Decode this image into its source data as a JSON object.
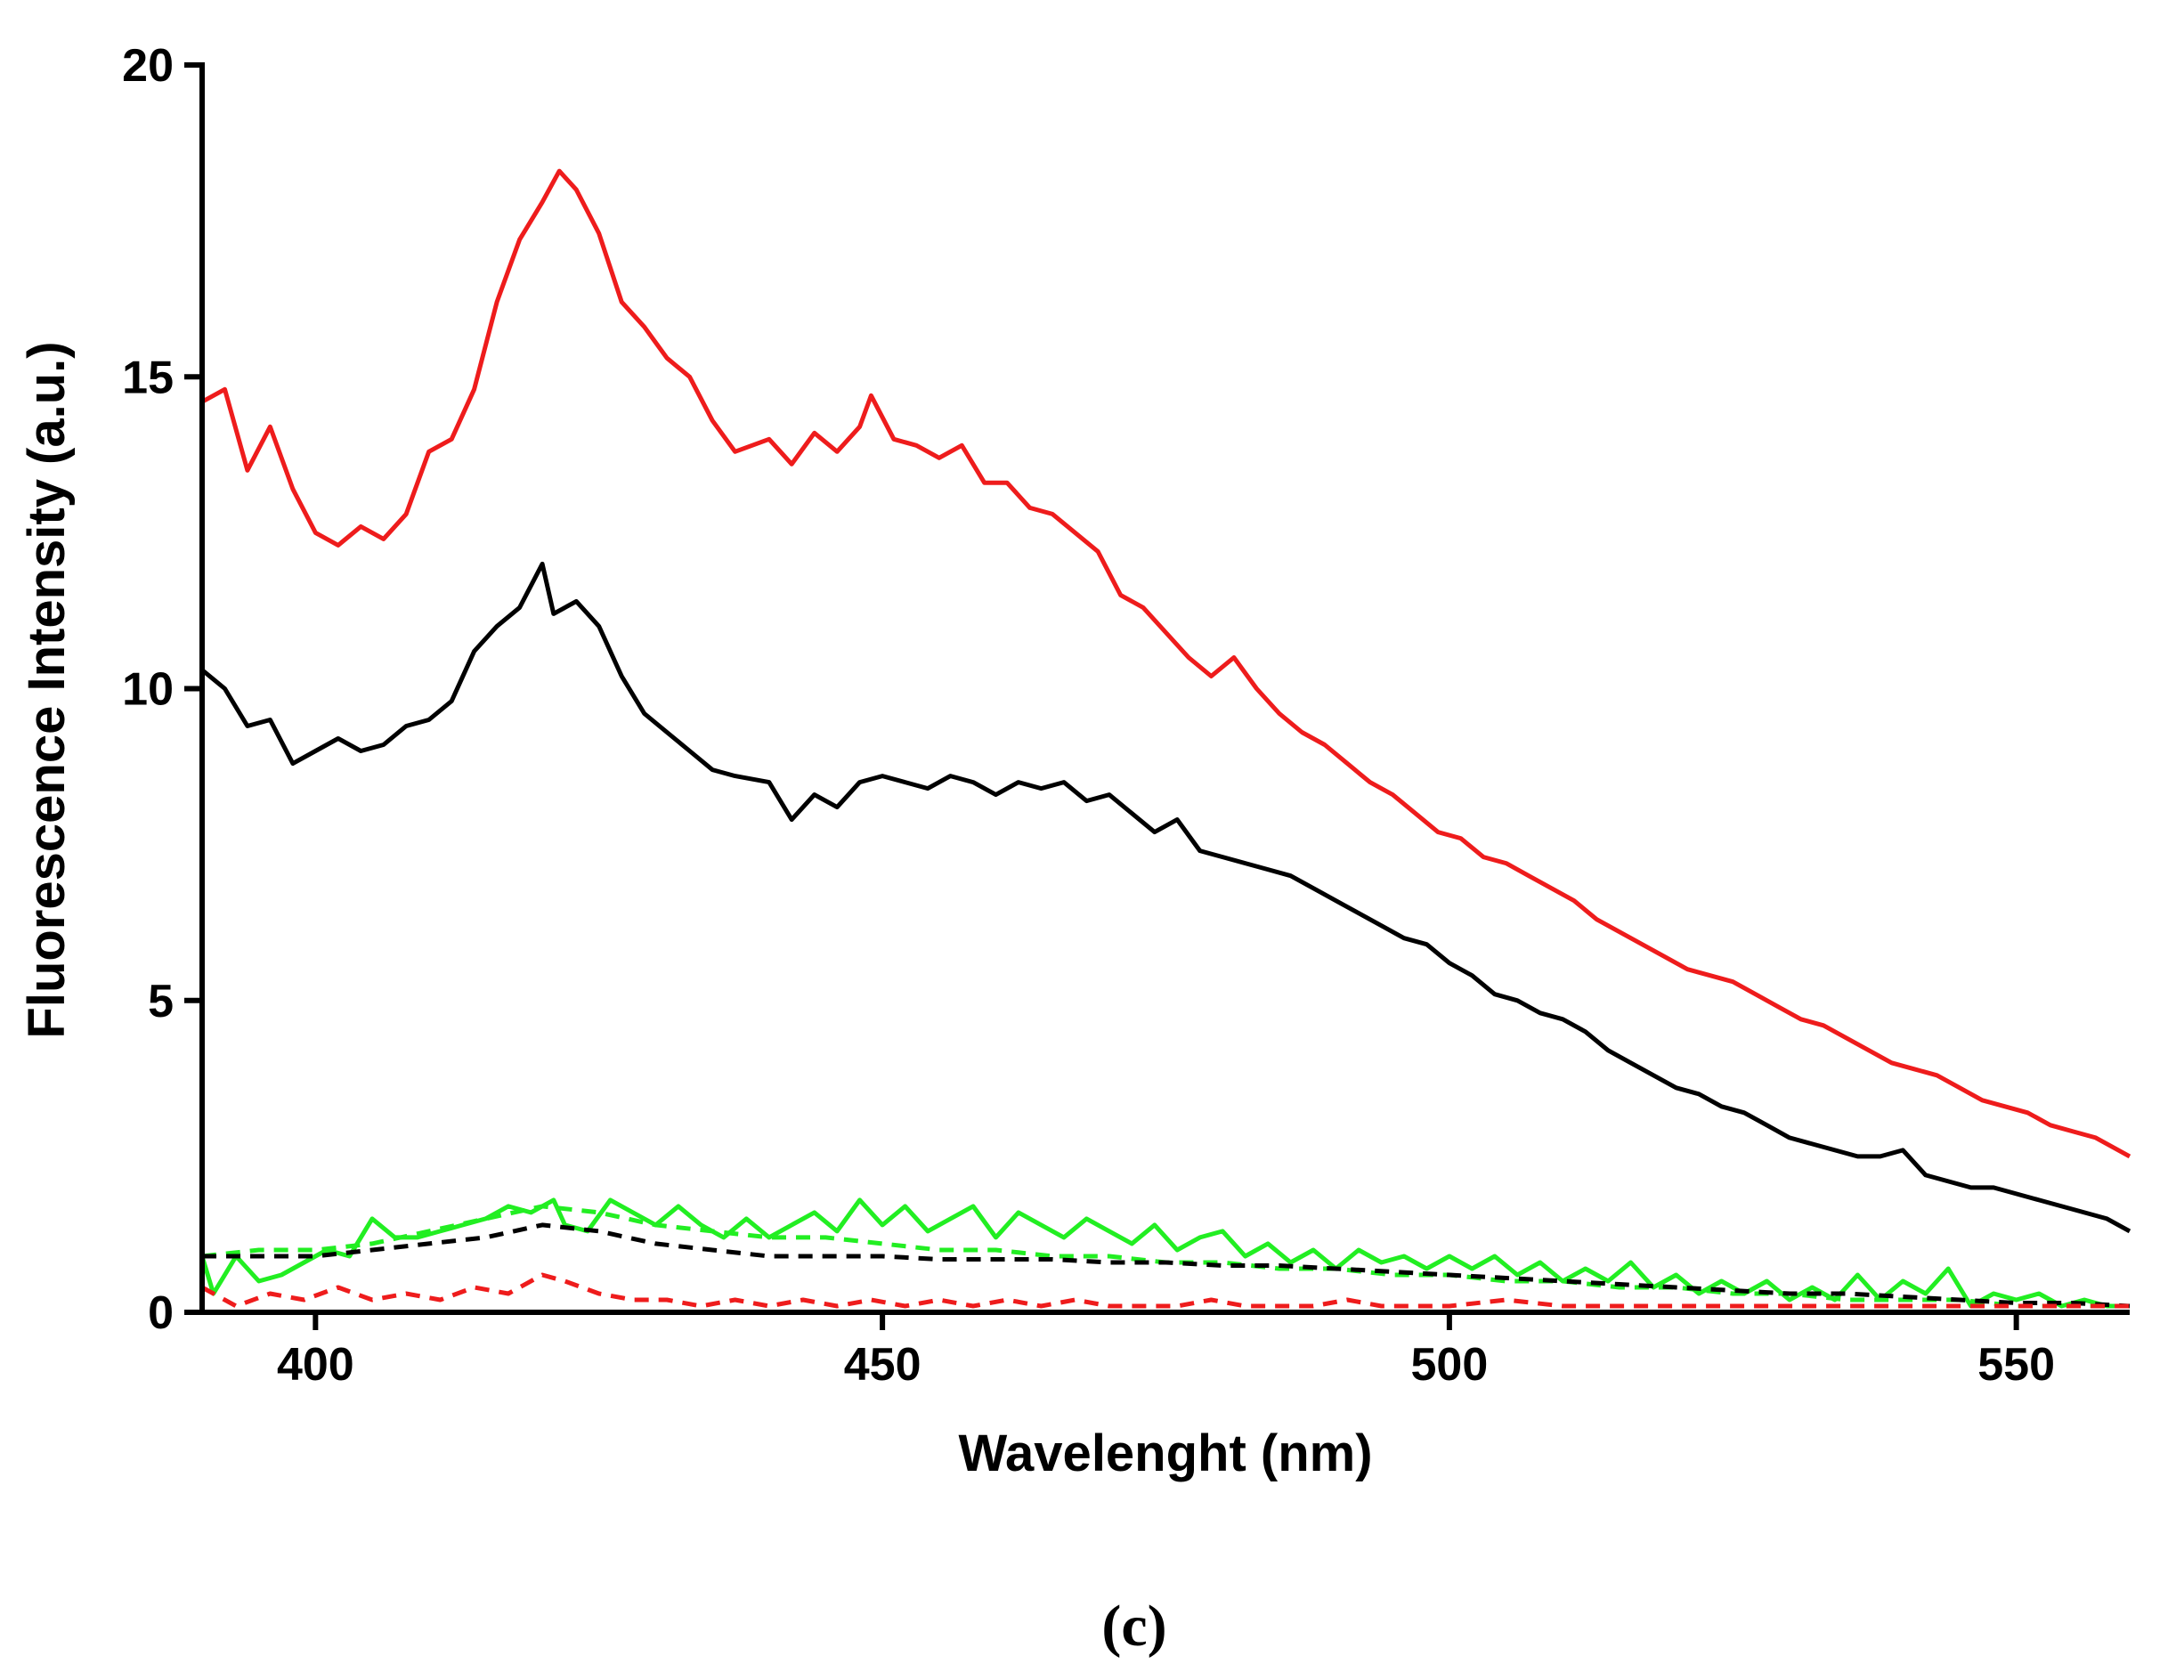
{
  "panel_label": "(c)",
  "chart_data": {
    "type": "line",
    "title": "",
    "xlabel": "Wavelenght (nm)",
    "ylabel": "Fluorescence Intensity (a.u.)",
    "xlim": [
      390,
      560
    ],
    "ylim": [
      0,
      20
    ],
    "xticks": [
      400,
      450,
      500,
      550
    ],
    "yticks": [
      0,
      5,
      10,
      15,
      20
    ],
    "grid": false,
    "legend": "none",
    "series": [
      {
        "color": "#ee1c1c",
        "style": "solid",
        "x": [
          390,
          392,
          394,
          396,
          398,
          400,
          402,
          404,
          406,
          408,
          410,
          412,
          414,
          416,
          418,
          420,
          421.5,
          423,
          425,
          427,
          429,
          431,
          433,
          435,
          437,
          440,
          442,
          444,
          446,
          448,
          449,
          451,
          453,
          455,
          457,
          459,
          461,
          463,
          465,
          467,
          469,
          471,
          473,
          475,
          477,
          479,
          481,
          483,
          485,
          487,
          489,
          491,
          493,
          495,
          497,
          499,
          501,
          503,
          505,
          507,
          509,
          511,
          513,
          515,
          517,
          519,
          521,
          523,
          525,
          527,
          529,
          531,
          533,
          535,
          537,
          539,
          541,
          543,
          545,
          547,
          549,
          551,
          553,
          555,
          557,
          559,
          560
        ],
        "values": [
          14.6,
          14.8,
          13.5,
          14.2,
          13.2,
          12.5,
          12.3,
          12.6,
          12.4,
          12.8,
          13.8,
          14.0,
          14.8,
          16.2,
          17.2,
          17.8,
          18.3,
          18.0,
          17.3,
          16.2,
          15.8,
          15.3,
          15.0,
          14.3,
          13.8,
          14.0,
          13.6,
          14.1,
          13.8,
          14.2,
          14.7,
          14.0,
          13.9,
          13.7,
          13.9,
          13.3,
          13.3,
          12.9,
          12.8,
          12.5,
          12.2,
          11.5,
          11.3,
          10.9,
          10.5,
          10.2,
          10.5,
          10.0,
          9.6,
          9.3,
          9.1,
          8.8,
          8.5,
          8.3,
          8.0,
          7.7,
          7.6,
          7.3,
          7.2,
          7.0,
          6.8,
          6.6,
          6.3,
          6.1,
          5.9,
          5.7,
          5.5,
          5.4,
          5.3,
          5.1,
          4.9,
          4.7,
          4.6,
          4.4,
          4.2,
          4.0,
          3.9,
          3.8,
          3.6,
          3.4,
          3.3,
          3.2,
          3.0,
          2.9,
          2.8,
          2.6,
          2.5
        ]
      },
      {
        "color": "#000000",
        "style": "solid",
        "x": [
          390,
          392,
          394,
          396,
          398,
          400,
          402,
          404,
          406,
          408,
          410,
          412,
          414,
          416,
          418,
          420,
          421,
          423,
          425,
          427,
          429,
          431,
          433,
          435,
          437,
          440,
          442,
          444,
          446,
          448,
          450,
          452,
          454,
          456,
          458,
          460,
          462,
          464,
          466,
          468,
          470,
          472,
          474,
          476,
          478,
          480,
          482,
          484,
          486,
          488,
          490,
          492,
          494,
          496,
          498,
          500,
          502,
          504,
          506,
          508,
          510,
          512,
          514,
          516,
          518,
          520,
          522,
          524,
          526,
          528,
          530,
          532,
          534,
          536,
          538,
          540,
          542,
          544,
          546,
          548,
          550,
          552,
          554,
          556,
          558,
          560
        ],
        "values": [
          10.3,
          10.0,
          9.4,
          9.5,
          8.8,
          9.0,
          9.2,
          9.0,
          9.1,
          9.4,
          9.5,
          9.8,
          10.6,
          11.0,
          11.3,
          12.0,
          11.2,
          11.4,
          11.0,
          10.2,
          9.6,
          9.3,
          9.0,
          8.7,
          8.6,
          8.5,
          7.9,
          8.3,
          8.1,
          8.5,
          8.6,
          8.5,
          8.4,
          8.6,
          8.5,
          8.3,
          8.5,
          8.4,
          8.5,
          8.2,
          8.3,
          8.0,
          7.7,
          7.9,
          7.4,
          7.3,
          7.2,
          7.1,
          7.0,
          6.8,
          6.6,
          6.4,
          6.2,
          6.0,
          5.9,
          5.6,
          5.4,
          5.1,
          5.0,
          4.8,
          4.7,
          4.5,
          4.2,
          4.0,
          3.8,
          3.6,
          3.5,
          3.3,
          3.2,
          3.0,
          2.8,
          2.7,
          2.6,
          2.5,
          2.5,
          2.6,
          2.2,
          2.1,
          2.0,
          2.0,
          1.9,
          1.8,
          1.7,
          1.6,
          1.5,
          1.3
        ]
      },
      {
        "color": "#22ee22",
        "style": "solid",
        "x": [
          390,
          391,
          393,
          395,
          397,
          399,
          401,
          403,
          405,
          407,
          409,
          411,
          413,
          415,
          417,
          419,
          421,
          422,
          424,
          426,
          428,
          430,
          432,
          434,
          436,
          438,
          440,
          442,
          444,
          446,
          448,
          450,
          452,
          454,
          456,
          458,
          460,
          462,
          464,
          466,
          468,
          470,
          472,
          474,
          476,
          478,
          480,
          482,
          484,
          486,
          488,
          490,
          492,
          494,
          496,
          498,
          500,
          502,
          504,
          506,
          508,
          510,
          512,
          514,
          516,
          518,
          520,
          522,
          524,
          526,
          528,
          530,
          532,
          534,
          536,
          538,
          540,
          542,
          544,
          546,
          548,
          550,
          552,
          554,
          556,
          558,
          560
        ],
        "values": [
          0.9,
          0.3,
          0.9,
          0.5,
          0.6,
          0.8,
          1.0,
          0.9,
          1.5,
          1.2,
          1.2,
          1.3,
          1.4,
          1.5,
          1.7,
          1.6,
          1.8,
          1.4,
          1.3,
          1.8,
          1.6,
          1.4,
          1.7,
          1.4,
          1.2,
          1.5,
          1.2,
          1.4,
          1.6,
          1.3,
          1.8,
          1.4,
          1.7,
          1.3,
          1.5,
          1.7,
          1.2,
          1.6,
          1.4,
          1.2,
          1.5,
          1.3,
          1.1,
          1.4,
          1.0,
          1.2,
          1.3,
          0.9,
          1.1,
          0.8,
          1.0,
          0.7,
          1.0,
          0.8,
          0.9,
          0.7,
          0.9,
          0.7,
          0.9,
          0.6,
          0.8,
          0.5,
          0.7,
          0.5,
          0.8,
          0.4,
          0.6,
          0.3,
          0.5,
          0.3,
          0.5,
          0.2,
          0.4,
          0.2,
          0.6,
          0.2,
          0.5,
          0.3,
          0.7,
          0.1,
          0.3,
          0.2,
          0.3,
          0.1,
          0.2,
          0.1,
          0.1
        ]
      },
      {
        "color": "#22ee22",
        "style": "dashed",
        "x": [
          390,
          395,
          400,
          405,
          410,
          415,
          420,
          425,
          430,
          435,
          440,
          445,
          450,
          455,
          460,
          465,
          470,
          475,
          480,
          485,
          490,
          495,
          500,
          505,
          510,
          515,
          520,
          525,
          530,
          535,
          540,
          545,
          550,
          555,
          560
        ],
        "values": [
          0.9,
          1.0,
          1.0,
          1.1,
          1.3,
          1.5,
          1.7,
          1.6,
          1.4,
          1.3,
          1.2,
          1.2,
          1.1,
          1.0,
          1.0,
          0.9,
          0.9,
          0.8,
          0.8,
          0.7,
          0.7,
          0.6,
          0.6,
          0.5,
          0.5,
          0.4,
          0.4,
          0.3,
          0.3,
          0.2,
          0.2,
          0.2,
          0.1,
          0.1,
          0.1
        ]
      },
      {
        "color": "#000000",
        "style": "dashed",
        "x": [
          390,
          395,
          400,
          405,
          410,
          415,
          420,
          425,
          430,
          435,
          440,
          445,
          450,
          455,
          460,
          465,
          470,
          475,
          480,
          485,
          490,
          495,
          500,
          505,
          510,
          515,
          520,
          525,
          530,
          535,
          540,
          545,
          550,
          555,
          560
        ],
        "values": [
          0.9,
          0.9,
          0.9,
          1.0,
          1.1,
          1.2,
          1.4,
          1.3,
          1.1,
          1.0,
          0.9,
          0.9,
          0.9,
          0.85,
          0.85,
          0.85,
          0.8,
          0.8,
          0.75,
          0.75,
          0.7,
          0.65,
          0.6,
          0.55,
          0.5,
          0.45,
          0.4,
          0.35,
          0.3,
          0.3,
          0.25,
          0.2,
          0.15,
          0.15,
          0.1
        ]
      },
      {
        "color": "#ee1c1c",
        "style": "dashed",
        "x": [
          390,
          393,
          396,
          399,
          402,
          405,
          408,
          411,
          414,
          417,
          420,
          422,
          425,
          428,
          431,
          434,
          437,
          440,
          443,
          446,
          449,
          452,
          455,
          458,
          461,
          464,
          467,
          470,
          473,
          476,
          479,
          482,
          485,
          488,
          491,
          494,
          497,
          500,
          505,
          510,
          515,
          520,
          525,
          530,
          535,
          540,
          545,
          550,
          555,
          560
        ],
        "values": [
          0.4,
          0.1,
          0.3,
          0.2,
          0.4,
          0.2,
          0.3,
          0.2,
          0.4,
          0.3,
          0.6,
          0.5,
          0.3,
          0.2,
          0.2,
          0.1,
          0.2,
          0.1,
          0.2,
          0.1,
          0.2,
          0.1,
          0.2,
          0.1,
          0.2,
          0.1,
          0.2,
          0.1,
          0.1,
          0.1,
          0.2,
          0.1,
          0.1,
          0.1,
          0.2,
          0.1,
          0.1,
          0.1,
          0.2,
          0.1,
          0.1,
          0.1,
          0.1,
          0.1,
          0.1,
          0.1,
          0.1,
          0.1,
          0.1,
          0.1
        ]
      }
    ]
  }
}
